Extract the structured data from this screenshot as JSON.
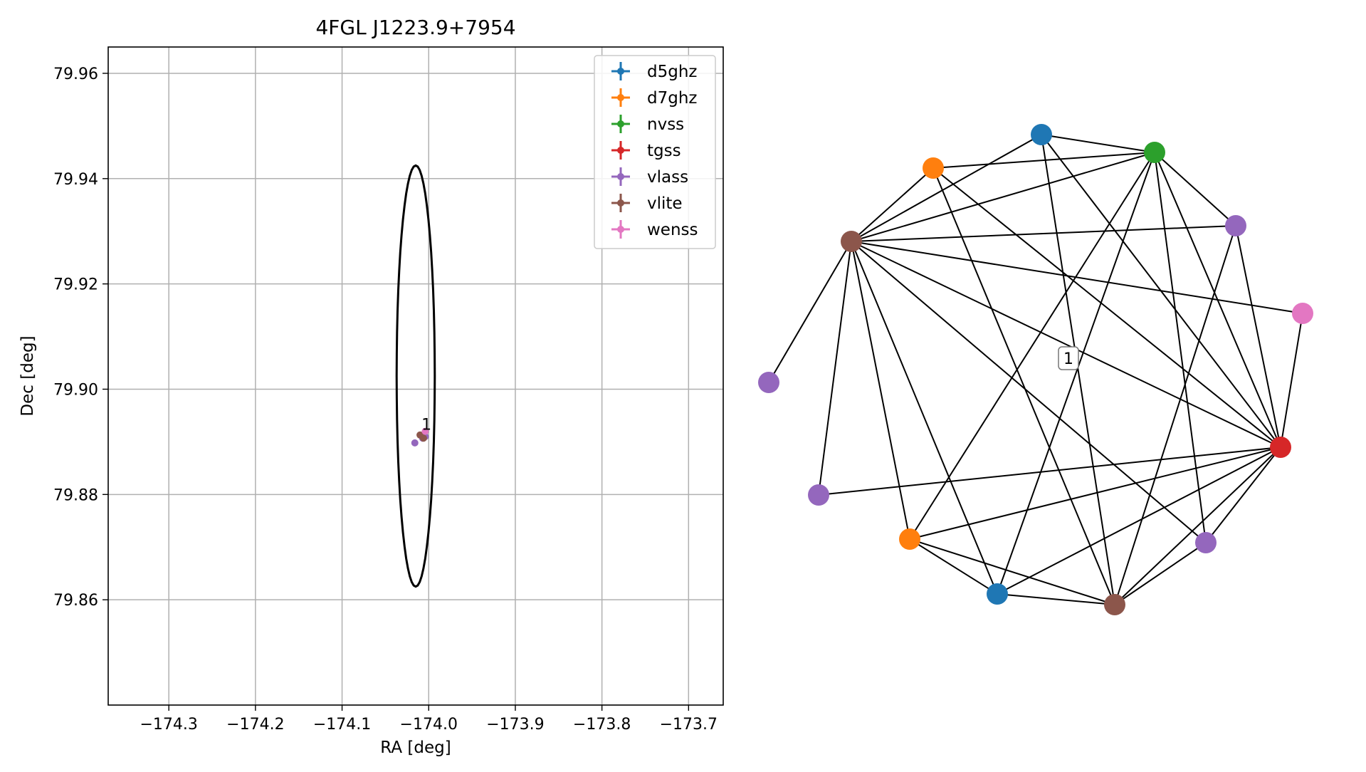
{
  "chart_data": [
    {
      "type": "scatter",
      "title": "4FGL J1223.9+7954",
      "xlabel": "RA [deg]",
      "ylabel": "Dec [deg]",
      "xlim": [
        -174.37,
        -173.66
      ],
      "ylim": [
        79.84,
        79.965
      ],
      "grid": true,
      "legend_position": "top-right",
      "x_ticks": [
        -174.3,
        -174.2,
        -174.1,
        -174.0,
        -173.9,
        -173.8,
        -173.7
      ],
      "x_tick_labels": [
        "−174.3",
        "−174.2",
        "−174.1",
        "−174.0",
        "−173.9",
        "−173.8",
        "−173.7"
      ],
      "y_ticks": [
        79.86,
        79.88,
        79.9,
        79.92,
        79.94,
        79.96
      ],
      "y_tick_labels": [
        "79.86",
        "79.88",
        "79.90",
        "79.92",
        "79.94",
        "79.96"
      ],
      "circle": {
        "center_ra": -174.015,
        "center_dec": 79.9025,
        "radius_deg": 0.04
      },
      "annotation": {
        "text": "1",
        "ra": -174.005,
        "dec": 79.8915
      },
      "series": [
        {
          "name": "d5ghz",
          "color": "#1f77b4",
          "points": [
            [
              -174.006,
              79.8912
            ]
          ]
        },
        {
          "name": "d7ghz",
          "color": "#ff7f0e",
          "points": [
            [
              -174.006,
              79.891
            ]
          ]
        },
        {
          "name": "nvss",
          "color": "#2ca02c",
          "points": [
            [
              -174.005,
              79.8911
            ]
          ]
        },
        {
          "name": "tgss",
          "color": "#d62728",
          "points": [
            [
              -174.005,
              79.8909
            ]
          ]
        },
        {
          "name": "vlass",
          "color": "#9467bd",
          "points": [
            [
              -174.016,
              79.8898
            ],
            [
              -174.004,
              79.891
            ],
            [
              -174.007,
              79.8907
            ]
          ]
        },
        {
          "name": "vlite",
          "color": "#8c564b",
          "points": [
            [
              -174.01,
              79.8913
            ],
            [
              -174.006,
              79.8907
            ]
          ]
        },
        {
          "name": "wenss",
          "color": "#e377c2",
          "points": [
            [
              -174.004,
              79.892
            ]
          ]
        }
      ]
    },
    {
      "type": "network",
      "label": "1",
      "nodes": [
        {
          "id": 0,
          "color": "#1f77b4"
        },
        {
          "id": 1,
          "color": "#2ca02c"
        },
        {
          "id": 2,
          "color": "#9467bd"
        },
        {
          "id": 3,
          "color": "#e377c2"
        },
        {
          "id": 4,
          "color": "#d62728"
        },
        {
          "id": 5,
          "color": "#9467bd"
        },
        {
          "id": 6,
          "color": "#8c564b"
        },
        {
          "id": 7,
          "color": "#1f77b4"
        },
        {
          "id": 8,
          "color": "#ff7f0e"
        },
        {
          "id": 9,
          "color": "#9467bd"
        },
        {
          "id": 10,
          "color": "#9467bd"
        },
        {
          "id": 11,
          "color": "#8c564b"
        },
        {
          "id": 12,
          "color": "#ff7f0e"
        }
      ],
      "edges": [
        [
          0,
          1
        ],
        [
          0,
          11
        ],
        [
          0,
          4
        ],
        [
          0,
          6
        ],
        [
          1,
          12
        ],
        [
          1,
          11
        ],
        [
          1,
          2
        ],
        [
          1,
          8
        ],
        [
          1,
          7
        ],
        [
          1,
          5
        ],
        [
          1,
          4
        ],
        [
          12,
          11
        ],
        [
          12,
          4
        ],
        [
          12,
          6
        ],
        [
          11,
          2
        ],
        [
          11,
          3
        ],
        [
          11,
          4
        ],
        [
          11,
          10
        ],
        [
          11,
          8
        ],
        [
          11,
          7
        ],
        [
          11,
          5
        ],
        [
          9,
          11
        ],
        [
          2,
          4
        ],
        [
          2,
          6
        ],
        [
          3,
          4
        ],
        [
          4,
          10
        ],
        [
          4,
          8
        ],
        [
          4,
          7
        ],
        [
          4,
          6
        ],
        [
          4,
          5
        ],
        [
          8,
          7
        ],
        [
          8,
          6
        ],
        [
          7,
          6
        ],
        [
          6,
          5
        ]
      ]
    }
  ]
}
